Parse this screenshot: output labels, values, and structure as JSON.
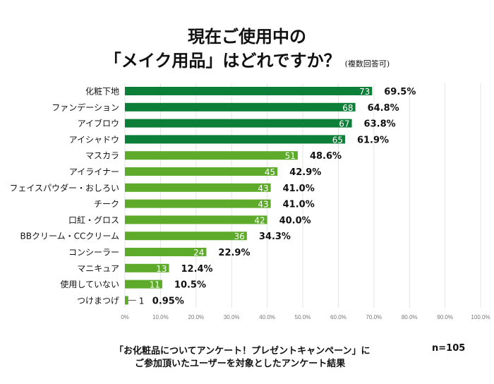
{
  "title_line1": "現在ご使用中の",
  "title_line2": "「メイク用品」はどれですか？",
  "title_note": "(複数回答可)",
  "footer_line1": "「お化粧品についてアンケート！プレゼントキャンペーン」に",
  "footer_line2": "ご参加頂いたユーザーを対象としたアンケート結果",
  "sample_size": "n=105",
  "colors": {
    "dark_green": "#0b7e37",
    "light_green": "#5eab2b",
    "grid": "#e4e4e4"
  },
  "chart_data": {
    "type": "bar",
    "orientation": "horizontal",
    "categories": [
      "化粧下地",
      "ファンデーション",
      "アイブロウ",
      "アイシャドウ",
      "マスカラ",
      "アイライナー",
      "フェイスパウダー・おしろい",
      "チーク",
      "口紅・グロス",
      "BBクリーム・CCクリーム",
      "コンシーラー",
      "マニキュア",
      "使用していない",
      "つけまつげ"
    ],
    "counts": [
      73,
      68,
      67,
      65,
      51,
      45,
      43,
      43,
      42,
      36,
      24,
      13,
      11,
      1
    ],
    "percent_labels": [
      "69.5%",
      "64.8%",
      "63.8%",
      "61.9%",
      "48.6%",
      "42.9%",
      "41.0%",
      "41.0%",
      "40.0%",
      "34.3%",
      "22.9%",
      "12.4%",
      "10.5%",
      "0.95%"
    ],
    "values": [
      69.5,
      64.8,
      63.8,
      61.9,
      48.6,
      42.9,
      41.0,
      41.0,
      40.0,
      34.3,
      22.9,
      12.4,
      10.5,
      0.95
    ],
    "bar_colors": [
      "dark",
      "dark",
      "dark",
      "dark",
      "light",
      "light",
      "light",
      "light",
      "light",
      "light",
      "light",
      "light",
      "light",
      "light"
    ],
    "xlim": [
      0,
      100
    ],
    "x_ticks": [
      "0%",
      "10.0%",
      "20.0%",
      "30.0%",
      "40.0%",
      "50.0%",
      "60.0%",
      "70.0%",
      "80.0%",
      "90.0%",
      "100.0%"
    ],
    "grid": true
  }
}
